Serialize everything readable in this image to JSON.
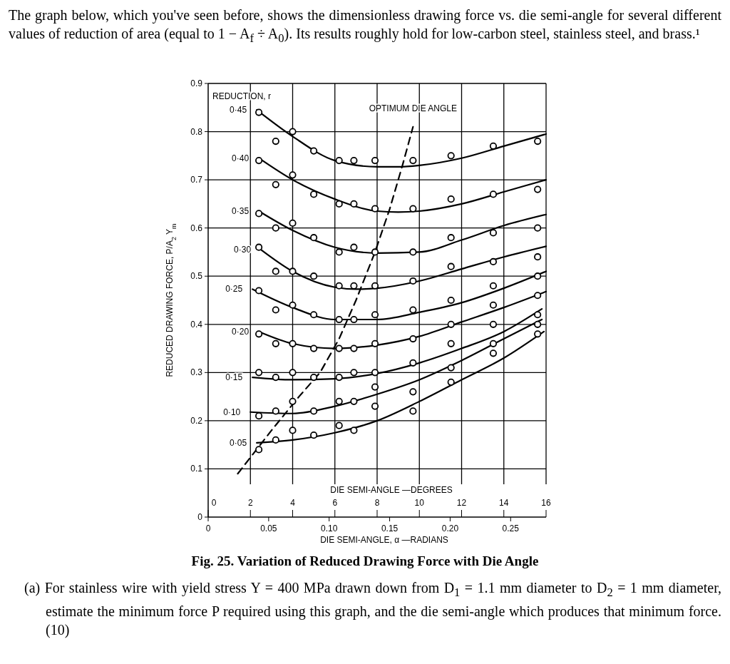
{
  "chart_data": {
    "type": "line",
    "subtitle": "The graph below, which you've seen before, shows the dimensionless drawing force vs. die semi-angle for several different values of reduction of area (equal to 1 − A$_{f}$ ÷ A$_{0}$). Its results roughly hold for low-carbon steel, stainless steel, and brass.¹",
    "title": "Fig. 25. Variation of Reduced Drawing Force with Die Angle",
    "xlabel": "DIE SEMI-ANGLE —DEGREES",
    "x2label": "DIE SEMI-ANGLE, α —RADIANS",
    "ylabel": "REDUCED DRAWING FORCE, P/A$_{2}$ Y$_{m}$",
    "xlim": [
      0,
      16
    ],
    "xticks": [
      0,
      2,
      4,
      6,
      8,
      10,
      12,
      14,
      16
    ],
    "x2lim": [
      0,
      0.2793
    ],
    "x2ticks": [
      0,
      0.05,
      {
        "value": 0.1,
        "label": "0.10"
      },
      0.15,
      {
        "value": 0.2,
        "label": "0.20"
      },
      0.25
    ],
    "ylim": [
      0,
      0.9
    ],
    "yticks": [
      0,
      0.1,
      0.2,
      0.3,
      0.4,
      0.5,
      0.6,
      0.7,
      0.8,
      0.9
    ],
    "grid": true,
    "annotations": [
      "REDUCTION, r",
      {
        "text": "OPTIMUM DIE ANGLE",
        "x": 9.7,
        "y": 0.81
      },
      "(a) For stainless wire with yield stress Y = 400 MPa drawn down from D$_{1}$ = 1.1 mm diameter to D$_{2}$ = 1 mm diameter, estimate the minimum force P required using this graph, and the die semi-angle which produces that minimum force. (10)"
    ],
    "series": [
      {
        "type": "line",
        "name": "0·45",
        "color": "#000000",
        "marker": "none",
        "x": [
          2.3,
          4,
          6,
          8,
          9,
          10,
          12,
          14,
          16
        ],
        "values": [
          0.845,
          0.79,
          0.74,
          0.727,
          0.727,
          0.73,
          0.745,
          0.77,
          0.795
        ]
      },
      {
        "type": "line",
        "name": "0·40",
        "color": "#000000",
        "marker": "none",
        "x": [
          2.4,
          4,
          6,
          8,
          9,
          10,
          12,
          14,
          16
        ],
        "values": [
          0.745,
          0.7,
          0.66,
          0.635,
          0.633,
          0.635,
          0.65,
          0.675,
          0.7
        ]
      },
      {
        "type": "line",
        "name": "0·35",
        "color": "#000000",
        "marker": "none",
        "x": [
          2.4,
          4,
          6,
          8,
          10,
          12,
          14,
          16
        ],
        "values": [
          0.635,
          0.595,
          0.56,
          0.548,
          0.55,
          0.575,
          0.605,
          0.628
        ]
      },
      {
        "type": "line",
        "name": "0·30",
        "color": "#000000",
        "marker": "none",
        "x": [
          2.5,
          4,
          6,
          7,
          8,
          10,
          12,
          14,
          16
        ],
        "values": [
          0.555,
          0.51,
          0.477,
          0.473,
          0.475,
          0.49,
          0.515,
          0.54,
          0.562
        ]
      },
      {
        "type": "line",
        "name": "0·25",
        "color": "#000000",
        "marker": "none",
        "x": [
          2.1,
          4,
          6,
          8,
          10,
          12,
          14,
          16
        ],
        "values": [
          0.473,
          0.435,
          0.41,
          0.41,
          0.425,
          0.445,
          0.475,
          0.51
        ]
      },
      {
        "type": "line",
        "name": "0·20",
        "color": "#000000",
        "marker": "none",
        "x": [
          2.4,
          4,
          6,
          8,
          10,
          12,
          14,
          16
        ],
        "values": [
          0.385,
          0.36,
          0.35,
          0.357,
          0.375,
          0.405,
          0.435,
          0.468
        ]
      },
      {
        "type": "line",
        "name": "0·15",
        "color": "#000000",
        "marker": "none",
        "x": [
          2.1,
          4,
          6,
          8,
          10,
          12,
          14,
          15.8
        ],
        "values": [
          0.29,
          0.285,
          0.287,
          0.298,
          0.32,
          0.35,
          0.385,
          0.432
        ]
      },
      {
        "type": "line",
        "name": "0·10",
        "color": "#000000",
        "marker": "none",
        "x": [
          2,
          4,
          6,
          8,
          10,
          12,
          14,
          15.8
        ],
        "values": [
          0.218,
          0.215,
          0.23,
          0.255,
          0.285,
          0.325,
          0.37,
          0.41
        ]
      },
      {
        "type": "line",
        "name": "0·05",
        "color": "#000000",
        "marker": "none",
        "x": [
          2.3,
          4,
          6,
          8,
          10,
          12,
          14,
          15.9
        ],
        "values": [
          0.154,
          0.16,
          0.175,
          0.2,
          0.24,
          0.285,
          0.33,
          0.385
        ]
      },
      {
        "type": "line",
        "color": "#000000",
        "marker": "none",
        "line_style": "dashed",
        "x": [
          1.4,
          3,
          4.3,
          5.3,
          6.2,
          7,
          7.9,
          8.6,
          9.2,
          9.7
        ],
        "values": [
          0.09,
          0.18,
          0.25,
          0.3,
          0.37,
          0.45,
          0.55,
          0.64,
          0.73,
          0.81
        ]
      },
      {
        "type": "scatter",
        "color": "#000000",
        "marker": "circle",
        "x": [
          2.4,
          3.2,
          4,
          5,
          6.2,
          6.9,
          7.9,
          9.7,
          11.5,
          13.5,
          15.6
        ],
        "values": [
          0.84,
          0.78,
          0.8,
          0.76,
          0.74,
          0.74,
          0.74,
          0.74,
          0.75,
          0.77,
          0.78
        ]
      },
      {
        "type": "scatter",
        "color": "#000000",
        "marker": "circle",
        "x": [
          2.4,
          3.2,
          4,
          5,
          6.2,
          6.9,
          7.9,
          9.7,
          11.5,
          13.5,
          15.6
        ],
        "values": [
          0.74,
          0.69,
          0.71,
          0.67,
          0.65,
          0.65,
          0.64,
          0.64,
          0.66,
          0.67,
          0.68
        ]
      },
      {
        "type": "scatter",
        "color": "#000000",
        "marker": "circle",
        "x": [
          2.4,
          3.2,
          4,
          5,
          6.2,
          6.9,
          7.9,
          9.7,
          11.5,
          13.5,
          15.6
        ],
        "values": [
          0.63,
          0.6,
          0.61,
          0.58,
          0.55,
          0.56,
          0.55,
          0.55,
          0.58,
          0.59,
          0.6
        ]
      },
      {
        "type": "scatter",
        "color": "#000000",
        "marker": "circle",
        "x": [
          2.4,
          3.2,
          4,
          5,
          6.2,
          6.9,
          7.9,
          9.7,
          11.5,
          13.5,
          15.6
        ],
        "values": [
          0.56,
          0.51,
          0.51,
          0.5,
          0.48,
          0.48,
          0.48,
          0.49,
          0.52,
          0.53,
          0.54
        ]
      },
      {
        "type": "scatter",
        "color": "#000000",
        "marker": "circle",
        "x": [
          2.4,
          3.2,
          4,
          5,
          6.2,
          6.9,
          7.9,
          9.7,
          11.5,
          13.5,
          15.6
        ],
        "values": [
          0.47,
          0.43,
          0.44,
          0.42,
          0.41,
          0.41,
          0.42,
          0.43,
          0.45,
          0.48,
          0.5
        ]
      },
      {
        "type": "scatter",
        "color": "#000000",
        "marker": "circle",
        "x": [
          2.4,
          3.2,
          4,
          5,
          6.2,
          6.9,
          7.9,
          9.7,
          11.5,
          13.5,
          15.6
        ],
        "values": [
          0.38,
          0.36,
          0.36,
          0.35,
          0.35,
          0.35,
          0.36,
          0.37,
          0.4,
          0.44,
          0.46
        ]
      },
      {
        "type": "scatter",
        "color": "#000000",
        "marker": "circle",
        "x": [
          2.4,
          3.2,
          4,
          5,
          6.2,
          6.9,
          7.9,
          9.7,
          11.5,
          13.5,
          15.6
        ],
        "values": [
          0.3,
          0.29,
          0.3,
          0.29,
          0.29,
          0.3,
          0.3,
          0.32,
          0.36,
          0.4,
          0.42
        ]
      },
      {
        "type": "scatter",
        "color": "#000000",
        "marker": "circle",
        "x": [
          2.4,
          3.2,
          4,
          5,
          6.2,
          6.9,
          7.9,
          9.7,
          11.5,
          13.5,
          15.6
        ],
        "values": [
          0.21,
          0.22,
          0.24,
          0.22,
          0.24,
          0.24,
          0.27,
          0.26,
          0.31,
          0.36,
          0.4
        ]
      },
      {
        "type": "scatter",
        "color": "#000000",
        "marker": "circle",
        "x": [
          2.4,
          3.2,
          4,
          5,
          6.2,
          6.9,
          7.9,
          9.7,
          11.5,
          13.5,
          15.6
        ],
        "values": [
          0.14,
          0.16,
          0.18,
          0.17,
          0.19,
          0.18,
          0.23,
          0.22,
          0.28,
          0.34,
          0.38
        ]
      }
    ]
  }
}
